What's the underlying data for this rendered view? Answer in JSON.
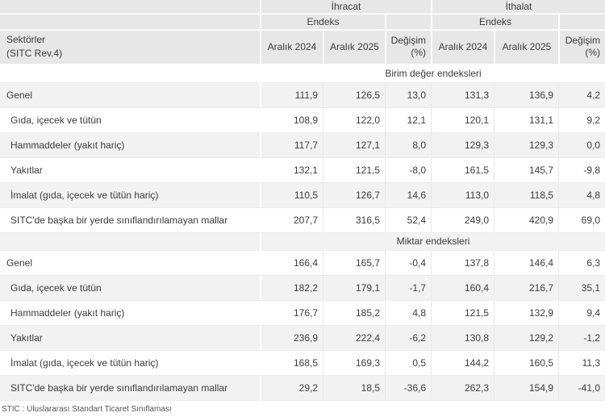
{
  "colors": {
    "header-bg": "#e7e7e7",
    "stripe-bg": "#f2f2f2",
    "white-bg": "#ffffff",
    "text": "#3b3b3b",
    "muted": "#555555",
    "grid": "#e9e9e9"
  },
  "header": {
    "export_group": "İhracat",
    "import_group": "İthalat",
    "index_label": "Endeks",
    "sector_line1": "Sektörler",
    "sector_line2": "(SITC Rev.4)",
    "col_dec_2024": "Aralık 2024",
    "col_dec_2025": "Aralık 2025",
    "change_line1": "Değişim",
    "change_line2": "(%)"
  },
  "table": {
    "sections": [
      {
        "title": "Birim değer endeksleri",
        "rows": [
          {
            "label": "Genel",
            "values": [
              "111,9",
              "126,5",
              "13,0",
              "131,3",
              "136,9",
              "4,2"
            ]
          },
          {
            "label": "Gıda, içecek ve tütün",
            "values": [
              "108,9",
              "122,0",
              "12,1",
              "120,1",
              "131,1",
              "9,2"
            ]
          },
          {
            "label": "Hammaddeler (yakıt hariç)",
            "values": [
              "117,7",
              "127,1",
              "8,0",
              "129,3",
              "129,3",
              "0,0"
            ]
          },
          {
            "label": "Yakıtlar",
            "values": [
              "132,1",
              "121,5",
              "-8,0",
              "161,5",
              "145,7",
              "-9,8"
            ]
          },
          {
            "label": "İmalat (gıda, içecek ve tütün hariç)",
            "values": [
              "110,5",
              "126,7",
              "14,6",
              "113,0",
              "118,5",
              "4,8"
            ]
          },
          {
            "label": "SITC'de başka bir yerde sınıflandırılamayan mallar",
            "values": [
              "207,7",
              "316,5",
              "52,4",
              "249,0",
              "420,9",
              "69,0"
            ]
          }
        ]
      },
      {
        "title": "Miktar endeksleri",
        "rows": [
          {
            "label": "Genel",
            "values": [
              "166,4",
              "165,7",
              "-0,4",
              "137,8",
              "146,4",
              "6,3"
            ]
          },
          {
            "label": "Gıda, içecek ve tütün",
            "values": [
              "182,2",
              "179,1",
              "-1,7",
              "160,4",
              "216,7",
              "35,1"
            ]
          },
          {
            "label": "Hammaddeler (yakıt hariç)",
            "values": [
              "176,7",
              "185,2",
              "4,8",
              "121,5",
              "132,9",
              "9,4"
            ]
          },
          {
            "label": "Yakıtlar",
            "values": [
              "236,9",
              "222,4",
              "-6,2",
              "130,8",
              "129,2",
              "-1,2"
            ]
          },
          {
            "label": "İmalat (gıda, içecek ve tütün hariç)",
            "values": [
              "168,5",
              "169,3",
              "0,5",
              "144,2",
              "160,5",
              "11,3"
            ]
          },
          {
            "label": "SITC'de başka bir yerde sınıflandırılamayan mallar",
            "values": [
              "29,2",
              "18,5",
              "-36,6",
              "262,3",
              "154,9",
              "-41,0"
            ]
          }
        ]
      }
    ],
    "footnote": "STIC : Uluslararası Standart Ticaret Sınıflaması"
  },
  "chart_data": {
    "type": "table",
    "column_groups": [
      {
        "label": "İhracat",
        "sub_group": "Endeks",
        "columns": [
          "Aralık 2024",
          "Aralık 2025",
          "Değişim (%)"
        ]
      },
      {
        "label": "İthalat",
        "sub_group": "Endeks",
        "columns": [
          "Aralık 2024",
          "Aralık 2025",
          "Değişim (%)"
        ]
      }
    ],
    "row_header": "Sektörler (SITC Rev.4)",
    "sections": [
      {
        "name": "Birim değer endeksleri",
        "rows": [
          {
            "sector": "Genel",
            "ihracat": [
              111.9,
              126.5,
              13.0
            ],
            "ithalat": [
              131.3,
              136.9,
              4.2
            ]
          },
          {
            "sector": "Gıda, içecek ve tütün",
            "ihracat": [
              108.9,
              122.0,
              12.1
            ],
            "ithalat": [
              120.1,
              131.1,
              9.2
            ]
          },
          {
            "sector": "Hammaddeler (yakıt hariç)",
            "ihracat": [
              117.7,
              127.1,
              8.0
            ],
            "ithalat": [
              129.3,
              129.3,
              0.0
            ]
          },
          {
            "sector": "Yakıtlar",
            "ihracat": [
              132.1,
              121.5,
              -8.0
            ],
            "ithalat": [
              161.5,
              145.7,
              -9.8
            ]
          },
          {
            "sector": "İmalat (gıda, içecek ve tütün hariç)",
            "ihracat": [
              110.5,
              126.7,
              14.6
            ],
            "ithalat": [
              113.0,
              118.5,
              4.8
            ]
          },
          {
            "sector": "SITC'de başka bir yerde sınıflandırılamayan mallar",
            "ihracat": [
              207.7,
              316.5,
              52.4
            ],
            "ithalat": [
              249.0,
              420.9,
              69.0
            ]
          }
        ]
      },
      {
        "name": "Miktar endeksleri",
        "rows": [
          {
            "sector": "Genel",
            "ihracat": [
              166.4,
              165.7,
              -0.4
            ],
            "ithalat": [
              137.8,
              146.4,
              6.3
            ]
          },
          {
            "sector": "Gıda, içecek ve tütün",
            "ihracat": [
              182.2,
              179.1,
              -1.7
            ],
            "ithalat": [
              160.4,
              216.7,
              35.1
            ]
          },
          {
            "sector": "Hammaddeler (yakıt hariç)",
            "ihracat": [
              176.7,
              185.2,
              4.8
            ],
            "ithalat": [
              121.5,
              132.9,
              9.4
            ]
          },
          {
            "sector": "Yakıtlar",
            "ihracat": [
              236.9,
              222.4,
              -6.2
            ],
            "ithalat": [
              130.8,
              129.2,
              -1.2
            ]
          },
          {
            "sector": "İmalat (gıda, içecek ve tütün hariç)",
            "ihracat": [
              168.5,
              169.3,
              0.5
            ],
            "ithalat": [
              144.2,
              160.5,
              11.3
            ]
          },
          {
            "sector": "SITC'de başka bir yerde sınıflandırılamayan mallar",
            "ihracat": [
              29.2,
              18.5,
              -36.6
            ],
            "ithalat": [
              262.3,
              154.9,
              -41.0
            ]
          }
        ]
      }
    ],
    "footnote": "STIC : Uluslararası Standart Ticaret Sınıflaması"
  }
}
